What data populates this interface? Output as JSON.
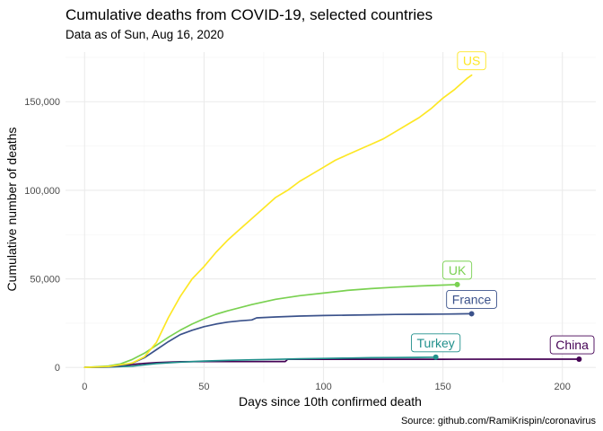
{
  "chart_data": {
    "type": "line",
    "title": "Cumulative deaths from COVID-19, selected countries",
    "subtitle": "Data as of Sun, Aug 16, 2020",
    "xlabel": "Days since 10th confirmed death",
    "ylabel": "Cumulative number of deaths",
    "caption": "Source: github.com/RamiKrispin/coronavirus",
    "xlim": [
      -8,
      214
    ],
    "ylim": [
      -8500,
      178000
    ],
    "x_ticks": [
      0,
      50,
      100,
      150,
      200
    ],
    "x_tick_labels": [
      "0",
      "50",
      "100",
      "150",
      "200"
    ],
    "y_ticks": [
      0,
      50000,
      100000,
      150000
    ],
    "y_tick_labels": [
      "0",
      "50,000",
      "100,000",
      "150,000"
    ],
    "grid": true,
    "legend": "none",
    "series": [
      {
        "name": "US",
        "color": "#FDE725",
        "end_point": false,
        "label_position": "above-end",
        "x": [
          0,
          10,
          20,
          25,
          30,
          35,
          40,
          45,
          50,
          55,
          60,
          65,
          70,
          75,
          80,
          85,
          90,
          95,
          100,
          105,
          110,
          115,
          120,
          125,
          130,
          135,
          140,
          145,
          150,
          155,
          160,
          162
        ],
        "y": [
          0,
          500,
          2500,
          6000,
          14000,
          28000,
          40000,
          50000,
          57000,
          65000,
          72000,
          78000,
          84000,
          90000,
          96000,
          100000,
          105000,
          109000,
          113000,
          117000,
          120000,
          123000,
          126000,
          129000,
          133000,
          137000,
          141000,
          146000,
          152000,
          157000,
          163000,
          165000
        ]
      },
      {
        "name": "UK",
        "color": "#7AD151",
        "end_point": true,
        "label_position": "above-end",
        "x": [
          0,
          10,
          15,
          20,
          25,
          30,
          35,
          40,
          45,
          50,
          55,
          60,
          70,
          80,
          90,
          100,
          110,
          120,
          130,
          140,
          150,
          156
        ],
        "y": [
          0,
          800,
          2000,
          4500,
          8000,
          12500,
          17000,
          21000,
          24500,
          27500,
          30000,
          32000,
          35500,
          38500,
          40500,
          42000,
          43500,
          44500,
          45300,
          46000,
          46500,
          46800
        ]
      },
      {
        "name": "France",
        "color": "#3B528B",
        "end_point": true,
        "label_position": "above-end",
        "x": [
          0,
          10,
          15,
          20,
          25,
          30,
          35,
          40,
          45,
          50,
          55,
          60,
          65,
          70,
          72,
          80,
          90,
          100,
          110,
          120,
          130,
          140,
          150,
          162
        ],
        "y": [
          0,
          300,
          800,
          2500,
          5500,
          10000,
          14500,
          18500,
          21000,
          23000,
          24500,
          25600,
          26300,
          26800,
          28000,
          28500,
          29000,
          29300,
          29500,
          29700,
          29900,
          30000,
          30100,
          30300
        ]
      },
      {
        "name": "Turkey",
        "color": "#21908C",
        "end_point": true,
        "label_position": "above-end",
        "x": [
          0,
          10,
          20,
          25,
          30,
          40,
          50,
          60,
          70,
          80,
          90,
          100,
          110,
          120,
          130,
          140,
          147
        ],
        "y": [
          0,
          200,
          700,
          1500,
          2200,
          3000,
          3600,
          4000,
          4300,
          4600,
          4900,
          5100,
          5300,
          5500,
          5600,
          5700,
          5800
        ]
      },
      {
        "name": "China",
        "color": "#440154",
        "end_point": true,
        "label_position": "above-end",
        "x": [
          0,
          10,
          15,
          20,
          25,
          30,
          35,
          40,
          50,
          60,
          70,
          80,
          84,
          85,
          100,
          120,
          150,
          180,
          207
        ],
        "y": [
          0,
          300,
          900,
          1700,
          2300,
          2700,
          3000,
          3200,
          3300,
          3320,
          3330,
          3340,
          3340,
          4630,
          4630,
          4640,
          4650,
          4660,
          4670
        ]
      }
    ]
  }
}
